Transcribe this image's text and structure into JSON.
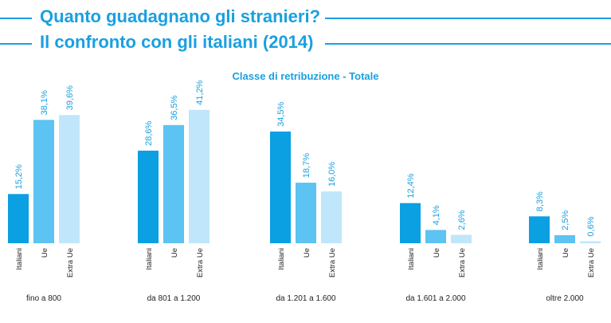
{
  "header": {
    "title_line1": "Quanto guadagnano gli stranieri?",
    "title_line2": "Il confronto con gli italiani (2014)"
  },
  "chart_data": {
    "type": "bar",
    "title": "Quanto guadagnano gli stranieri? Il confronto con gli italiani (2014)",
    "subtitle": "Classe di retribuzione - Totale",
    "categories": [
      "fino a 800",
      "da 801 a 1.200",
      "da 1.201 a 1.600",
      "da 1.601 a 2.000",
      "oltre 2.000"
    ],
    "series": [
      {
        "name": "Italiani",
        "color": "#0aa0e2",
        "values": [
          15.2,
          28.6,
          34.5,
          12.4,
          8.3
        ],
        "labels": [
          "15,2%",
          "28,6%",
          "34,5%",
          "12,4%",
          "8,3%"
        ]
      },
      {
        "name": "Ue",
        "color": "#5cc3f2",
        "values": [
          38.1,
          36.5,
          18.7,
          4.1,
          2.5
        ],
        "labels": [
          "38,1%",
          "36,5%",
          "18,7%",
          "4,1%",
          "2,5%"
        ]
      },
      {
        "name": "Extra Ue",
        "color": "#bfe6fa",
        "values": [
          39.6,
          41.2,
          16.0,
          2.6,
          0.6
        ],
        "labels": [
          "39,6%",
          "41,2%",
          "16,0%",
          "2,6%",
          "0,6%"
        ]
      }
    ],
    "xlabel": "",
    "ylabel": "",
    "ylim": [
      0,
      45
    ],
    "grid": false,
    "legend": "none",
    "label_color": "#1aa0e0"
  }
}
